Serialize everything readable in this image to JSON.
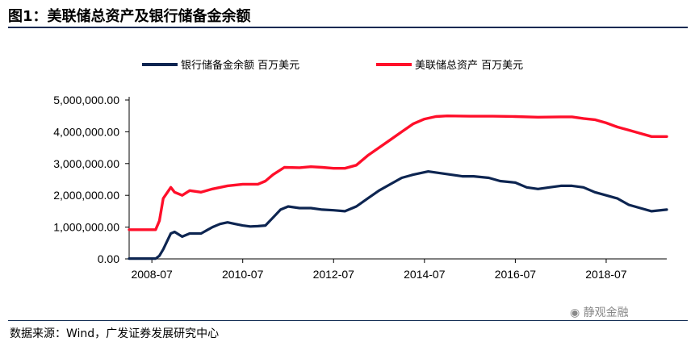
{
  "header": {
    "title": "图1：美联储总资产及银行储备金余额"
  },
  "footer": {
    "source": "数据来源：Wind，广发证券发展研究中心",
    "watermark": "静观金融"
  },
  "chart_data": {
    "type": "line",
    "title": "",
    "xlabel": "",
    "ylabel": "",
    "x_ticks": [
      "2008-07",
      "2010-07",
      "2012-07",
      "2014-07",
      "2016-07",
      "2018-07"
    ],
    "y_ticks": [
      "0.00",
      "1,000,000.00",
      "2,000,000.00",
      "3,000,000.00",
      "4,000,000.00",
      "5,000,000.00"
    ],
    "ylim": [
      0,
      5000000
    ],
    "xlim": [
      "2008-01",
      "2019-11"
    ],
    "legend_position": "top",
    "grid": false,
    "series": [
      {
        "name": "银行储备金余额 百万美元",
        "color": "#0d2551",
        "points": [
          [
            "2008-01",
            10000
          ],
          [
            "2008-08",
            10000
          ],
          [
            "2008-09",
            100000
          ],
          [
            "2008-10",
            300000
          ],
          [
            "2008-11",
            550000
          ],
          [
            "2008-12",
            800000
          ],
          [
            "2009-01",
            850000
          ],
          [
            "2009-03",
            700000
          ],
          [
            "2009-05",
            800000
          ],
          [
            "2009-08",
            800000
          ],
          [
            "2009-11",
            1000000
          ],
          [
            "2010-01",
            1100000
          ],
          [
            "2010-03",
            1150000
          ],
          [
            "2010-05",
            1100000
          ],
          [
            "2010-07",
            1050000
          ],
          [
            "2010-09",
            1020000
          ],
          [
            "2010-11",
            1030000
          ],
          [
            "2011-01",
            1050000
          ],
          [
            "2011-03",
            1300000
          ],
          [
            "2011-05",
            1550000
          ],
          [
            "2011-07",
            1650000
          ],
          [
            "2011-10",
            1600000
          ],
          [
            "2012-01",
            1600000
          ],
          [
            "2012-04",
            1550000
          ],
          [
            "2012-07",
            1530000
          ],
          [
            "2012-10",
            1500000
          ],
          [
            "2013-01",
            1650000
          ],
          [
            "2013-04",
            1900000
          ],
          [
            "2013-07",
            2150000
          ],
          [
            "2013-10",
            2350000
          ],
          [
            "2014-01",
            2550000
          ],
          [
            "2014-04",
            2650000
          ],
          [
            "2014-08",
            2750000
          ],
          [
            "2014-11",
            2700000
          ],
          [
            "2015-02",
            2650000
          ],
          [
            "2015-05",
            2600000
          ],
          [
            "2015-08",
            2600000
          ],
          [
            "2015-12",
            2550000
          ],
          [
            "2016-03",
            2450000
          ],
          [
            "2016-07",
            2400000
          ],
          [
            "2016-10",
            2250000
          ],
          [
            "2017-01",
            2200000
          ],
          [
            "2017-04",
            2250000
          ],
          [
            "2017-07",
            2300000
          ],
          [
            "2017-10",
            2300000
          ],
          [
            "2018-01",
            2250000
          ],
          [
            "2018-04",
            2100000
          ],
          [
            "2018-07",
            2000000
          ],
          [
            "2018-10",
            1900000
          ],
          [
            "2019-01",
            1700000
          ],
          [
            "2019-04",
            1600000
          ],
          [
            "2019-07",
            1500000
          ],
          [
            "2019-11",
            1550000
          ]
        ]
      },
      {
        "name": "美联储总资产 百万美元",
        "color": "#ff0f2a",
        "points": [
          [
            "2008-01",
            920000
          ],
          [
            "2008-08",
            920000
          ],
          [
            "2008-09",
            1200000
          ],
          [
            "2008-10",
            1900000
          ],
          [
            "2008-12",
            2250000
          ],
          [
            "2009-01",
            2100000
          ],
          [
            "2009-03",
            2000000
          ],
          [
            "2009-05",
            2150000
          ],
          [
            "2009-08",
            2100000
          ],
          [
            "2009-11",
            2200000
          ],
          [
            "2010-03",
            2300000
          ],
          [
            "2010-07",
            2350000
          ],
          [
            "2010-11",
            2350000
          ],
          [
            "2011-01",
            2450000
          ],
          [
            "2011-03",
            2650000
          ],
          [
            "2011-06",
            2880000
          ],
          [
            "2011-10",
            2870000
          ],
          [
            "2012-01",
            2900000
          ],
          [
            "2012-04",
            2880000
          ],
          [
            "2012-07",
            2850000
          ],
          [
            "2012-10",
            2850000
          ],
          [
            "2013-01",
            2950000
          ],
          [
            "2013-04",
            3250000
          ],
          [
            "2013-07",
            3500000
          ],
          [
            "2013-10",
            3750000
          ],
          [
            "2014-01",
            4000000
          ],
          [
            "2014-04",
            4250000
          ],
          [
            "2014-07",
            4400000
          ],
          [
            "2014-10",
            4480000
          ],
          [
            "2015-01",
            4500000
          ],
          [
            "2015-07",
            4490000
          ],
          [
            "2016-01",
            4490000
          ],
          [
            "2016-07",
            4480000
          ],
          [
            "2017-01",
            4460000
          ],
          [
            "2017-07",
            4470000
          ],
          [
            "2017-10",
            4470000
          ],
          [
            "2018-01",
            4420000
          ],
          [
            "2018-04",
            4380000
          ],
          [
            "2018-07",
            4280000
          ],
          [
            "2018-10",
            4150000
          ],
          [
            "2019-01",
            4050000
          ],
          [
            "2019-04",
            3950000
          ],
          [
            "2019-07",
            3850000
          ],
          [
            "2019-11",
            3850000
          ]
        ]
      }
    ]
  }
}
